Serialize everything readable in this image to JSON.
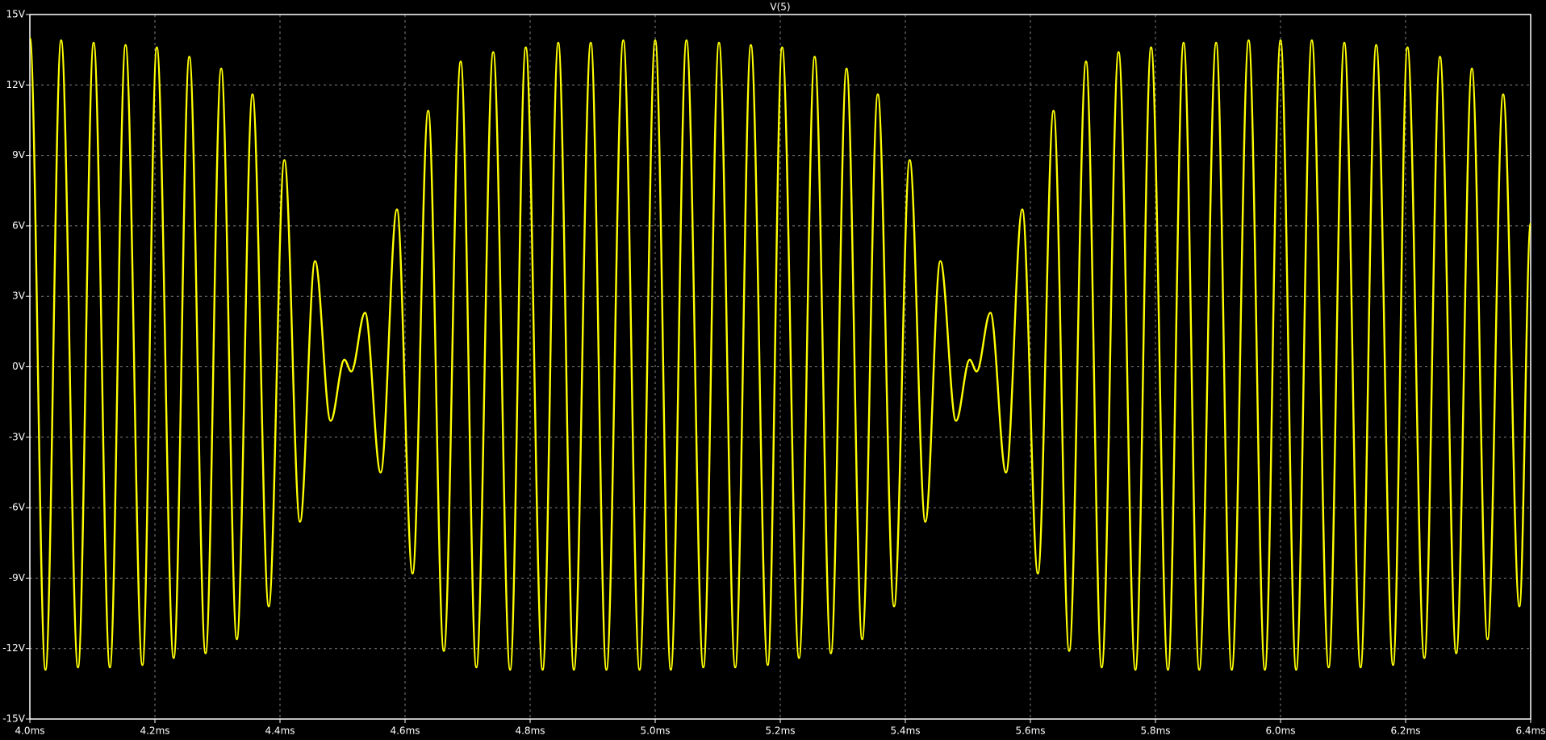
{
  "chart_data": {
    "type": "line",
    "series": [
      {
        "name": "V(5)",
        "color": "#ffff00",
        "values": [
          14.0,
          -12.9,
          13.9,
          -12.8,
          13.8,
          -12.8,
          13.7,
          -12.7,
          13.6,
          -12.4,
          13.2,
          -12.2,
          12.7,
          -11.6,
          11.6,
          -10.2,
          8.8,
          -6.6,
          4.5,
          -2.3,
          0.3,
          -0.2,
          2.3,
          -4.5,
          6.7,
          -8.8,
          10.9,
          -12.1,
          13.0,
          -12.8,
          13.4,
          -12.9,
          13.6,
          -12.9,
          13.8,
          -12.9,
          13.8,
          -12.9,
          13.9,
          -12.9,
          13.9,
          -12.9,
          13.9,
          -12.8,
          13.8,
          -12.8,
          13.7,
          -12.7,
          13.6,
          -12.4,
          13.2,
          -12.2,
          12.7,
          -11.6,
          11.6,
          -10.2,
          8.8,
          -6.6,
          4.5,
          -2.3,
          0.3,
          -0.2,
          2.3,
          -4.5,
          6.7,
          -8.8,
          10.9,
          -12.1,
          13.0,
          -12.8,
          13.4,
          -12.9,
          13.6,
          -12.9,
          13.8,
          -12.9,
          13.8,
          -12.9,
          13.9,
          -12.9,
          13.9,
          -12.9,
          13.9,
          -12.8,
          13.8,
          -12.8,
          13.7,
          -12.7,
          13.6,
          -12.4,
          13.2,
          -12.2,
          12.7,
          -11.6,
          11.6,
          -10.2,
          6.1
        ]
      }
    ],
    "x": [
      4.0,
      4.025,
      4.05,
      4.077,
      4.102,
      4.128,
      4.153,
      4.18,
      4.203,
      4.23,
      4.255,
      4.281,
      4.306,
      4.331,
      4.356,
      4.382,
      4.407,
      4.432,
      4.456,
      4.481,
      4.503,
      4.514,
      4.536,
      4.561,
      4.587,
      4.612,
      4.637,
      4.662,
      4.689,
      4.714,
      4.741,
      4.768,
      4.793,
      4.82,
      4.845,
      4.87,
      4.897,
      4.922,
      4.949,
      4.975,
      5.0,
      5.025,
      5.05,
      5.077,
      5.102,
      5.128,
      5.153,
      5.18,
      5.203,
      5.23,
      5.255,
      5.281,
      5.306,
      5.331,
      5.356,
      5.382,
      5.407,
      5.432,
      5.456,
      5.481,
      5.503,
      5.514,
      5.536,
      5.561,
      5.587,
      5.612,
      5.637,
      5.662,
      5.689,
      5.714,
      5.741,
      5.768,
      5.793,
      5.82,
      5.845,
      5.87,
      5.897,
      5.922,
      5.949,
      5.975,
      6.0,
      6.025,
      6.05,
      6.077,
      6.102,
      6.128,
      6.153,
      6.18,
      6.203,
      6.23,
      6.255,
      6.281,
      6.306,
      6.331,
      6.356,
      6.382,
      6.4
    ],
    "xlim": [
      4.0,
      6.4
    ],
    "xticks": [
      {
        "value": 4.0,
        "label": "4.0ms"
      },
      {
        "value": 4.2,
        "label": "4.2ms"
      },
      {
        "value": 4.4,
        "label": "4.4ms"
      },
      {
        "value": 4.6,
        "label": "4.6ms"
      },
      {
        "value": 4.8,
        "label": "4.8ms"
      },
      {
        "value": 5.0,
        "label": "5.0ms"
      },
      {
        "value": 5.2,
        "label": "5.2ms"
      },
      {
        "value": 5.4,
        "label": "5.4ms"
      },
      {
        "value": 5.6,
        "label": "5.6ms"
      },
      {
        "value": 5.8,
        "label": "5.8ms"
      },
      {
        "value": 6.0,
        "label": "6.0ms"
      },
      {
        "value": 6.2,
        "label": "6.2ms"
      },
      {
        "value": 6.4,
        "label": "6.4ms"
      }
    ],
    "ylim": [
      -15,
      15
    ],
    "yticks": [
      {
        "value": 15,
        "label": "15V"
      },
      {
        "value": 12,
        "label": "12V"
      },
      {
        "value": 9,
        "label": "9V"
      },
      {
        "value": 6,
        "label": "6V"
      },
      {
        "value": 3,
        "label": "3V"
      },
      {
        "value": 0,
        "label": "0V"
      },
      {
        "value": -3,
        "label": "-3V"
      },
      {
        "value": -6,
        "label": "-6V"
      },
      {
        "value": -9,
        "label": "-9V"
      },
      {
        "value": -12,
        "label": "-12V"
      },
      {
        "value": -15,
        "label": "-15V"
      }
    ],
    "grid": true
  }
}
